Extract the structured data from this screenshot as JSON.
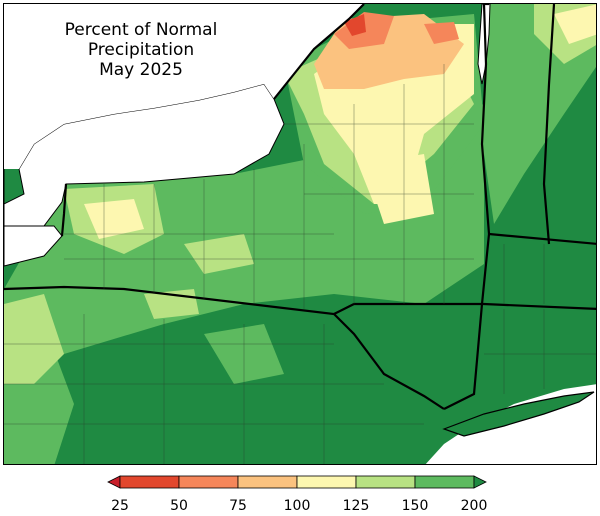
{
  "map": {
    "title_line1": "Percent of Normal Precipitation",
    "title_line2": "May 2025"
  },
  "legend": {
    "type": "colorbar",
    "ticks": [
      "25",
      "50",
      "75",
      "100",
      "125",
      "150",
      "200"
    ],
    "bins": [
      {
        "range": "<25",
        "color": "#c81e2a"
      },
      {
        "range": "25-50",
        "color": "#e2472d"
      },
      {
        "range": "50-75",
        "color": "#f5865a"
      },
      {
        "range": "75-100",
        "color": "#fbc27f"
      },
      {
        "range": "100-125",
        "color": "#fdf7b0"
      },
      {
        "range": "125-150",
        "color": "#b8e283"
      },
      {
        "range": "150-200",
        "color": "#5dba5f"
      },
      {
        "range": ">200",
        "color": "#1f8a42"
      }
    ]
  },
  "colors": {
    "dark_green": "#1f8a42",
    "mid_green": "#5dba5f",
    "light_green": "#b8e283",
    "pale_yellow": "#fdf7b0",
    "light_orange": "#fbc27f",
    "orange": "#f5865a",
    "red": "#e2472d",
    "water": "#ffffff",
    "border": "#000000"
  }
}
